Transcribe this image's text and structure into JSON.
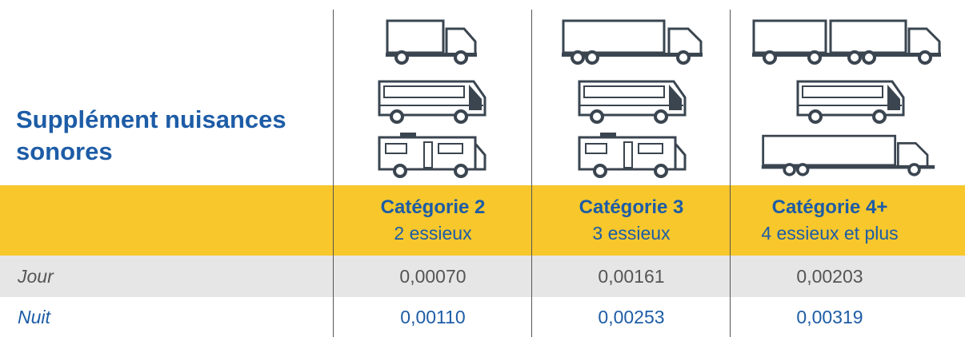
{
  "title": "Supplément nuisances sonores",
  "columns": [
    {
      "name": "Catégorie 2",
      "axles": "2 essieux"
    },
    {
      "name": "Catégorie 3",
      "axles": "3 essieux"
    },
    {
      "name": "Catégorie 4+",
      "axles": "4 essieux et plus"
    }
  ],
  "rows": [
    {
      "label": "Jour",
      "values": [
        "0,00070",
        "0,00161",
        "0,00203"
      ]
    },
    {
      "label": "Nuit",
      "values": [
        "0,00110",
        "0,00253",
        "0,00319"
      ]
    }
  ]
}
